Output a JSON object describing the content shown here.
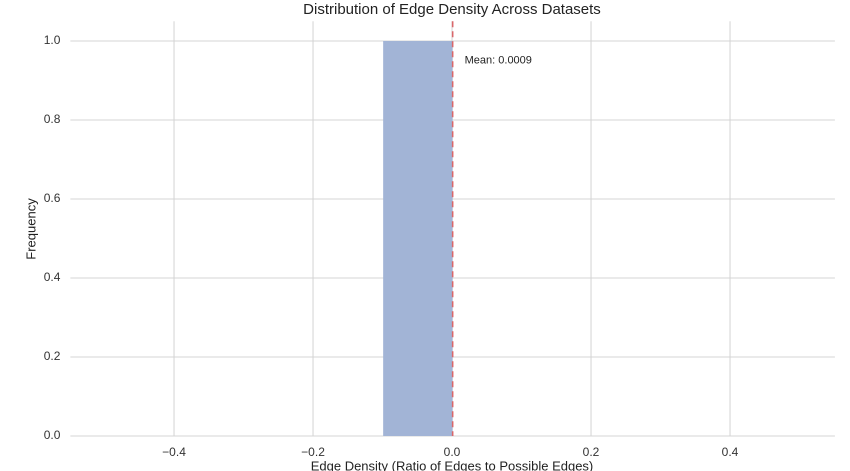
{
  "chart_data": {
    "type": "histogram",
    "title": "Distribution of Edge Density Across Datasets",
    "x_label": "Edge Density (Ratio of Edges to Possible Edges)",
    "y_label": "Frequency",
    "bins": [
      -0.4991,
      -0.3991,
      -0.2991,
      -0.1991,
      -0.0991,
      0.0009,
      0.1009,
      0.2009,
      0.3009,
      0.4009,
      0.5009
    ],
    "values": [
      0,
      0,
      0,
      0,
      1,
      0,
      0,
      0,
      0,
      0
    ],
    "color": "#a2b4d6",
    "mean": 0.0009,
    "mean_color": "#d9676a",
    "annotation": "Mean: 0.0009",
    "xlim": [
      -0.5491,
      0.5509
    ],
    "xticks": [
      {
        "value": -0.4,
        "label": "−0.4"
      },
      {
        "value": -0.2,
        "label": "−0.2"
      },
      {
        "value": 0,
        "label": "0.0"
      },
      0.2,
      0.4
    ],
    "ylim": [
      0,
      1.05
    ],
    "yticks": [
      {
        "value": 0,
        "label": "0.0"
      },
      0.2,
      0.4,
      0.6,
      0.8,
      {
        "value": 1,
        "label": "1.0"
      }
    ],
    "grid": true
  }
}
